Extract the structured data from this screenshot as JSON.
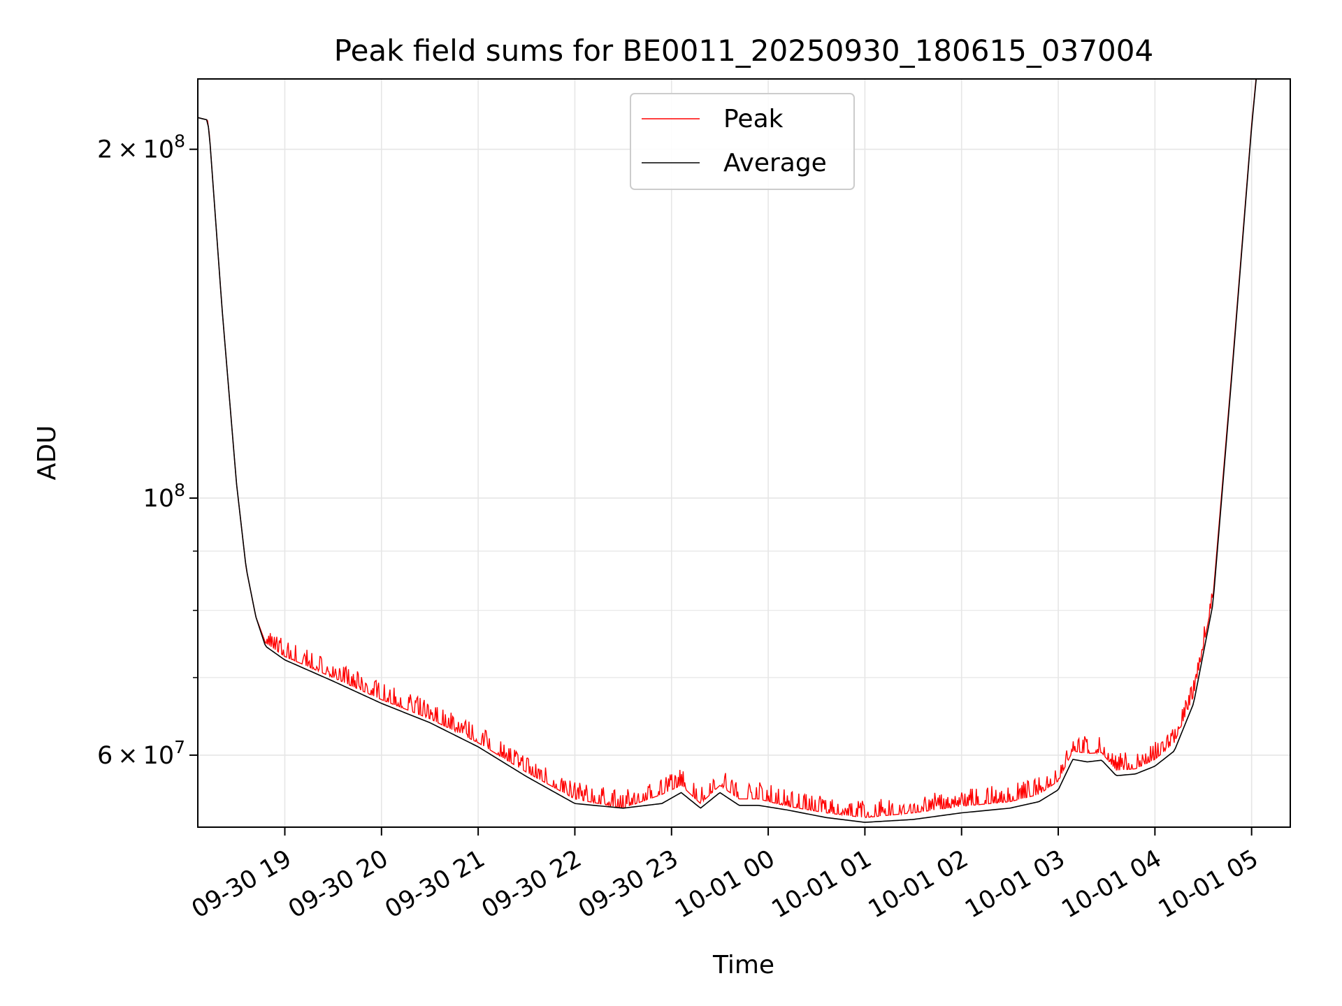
{
  "chart_data": {
    "type": "line",
    "title": "Peak field sums for BE0011_20250930_180615_037004",
    "xlabel": "Time",
    "ylabel": "ADU",
    "yscale": "log",
    "ylim": [
      52000000,
      230000000
    ],
    "xlim_hours": [
      18.1,
      29.4
    ],
    "grid": true,
    "legend_position": "upper center",
    "x_ticks": [
      {
        "hour": 19,
        "label": "09-30 19"
      },
      {
        "hour": 20,
        "label": "09-30 20"
      },
      {
        "hour": 21,
        "label": "09-30 21"
      },
      {
        "hour": 22,
        "label": "09-30 22"
      },
      {
        "hour": 23,
        "label": "09-30 23"
      },
      {
        "hour": 24,
        "label": "10-01 00"
      },
      {
        "hour": 25,
        "label": "10-01 01"
      },
      {
        "hour": 26,
        "label": "10-01 02"
      },
      {
        "hour": 27,
        "label": "10-01 03"
      },
      {
        "hour": 28,
        "label": "10-01 04"
      },
      {
        "hour": 29,
        "label": "10-01 05"
      }
    ],
    "y_major_ticks": [
      {
        "value": 200000000,
        "mantissa": "2",
        "base": "10",
        "exp": "8"
      },
      {
        "value": 100000000,
        "mantissa": "",
        "base": "10",
        "exp": "8"
      },
      {
        "value": 60000000,
        "mantissa": "6",
        "base": "10",
        "exp": "7"
      }
    ],
    "y_minor_ticks": [
      90000000,
      80000000,
      70000000
    ],
    "series": [
      {
        "name": "Peak",
        "color": "#ff0000",
        "hours": [
          18.1,
          18.2,
          18.22,
          18.35,
          18.5,
          18.6,
          18.7,
          18.8,
          19.0,
          19.5,
          20.0,
          20.5,
          21.0,
          21.5,
          22.0,
          22.5,
          22.9,
          23.1,
          23.3,
          23.5,
          23.7,
          23.9,
          24.2,
          24.6,
          25.0,
          25.5,
          26.0,
          26.5,
          26.8,
          27.0,
          27.15,
          27.3,
          27.45,
          27.6,
          27.8,
          28.0,
          28.2,
          28.4,
          28.6,
          28.8,
          29.0,
          29.05
        ],
        "values": [
          213000000,
          212000000,
          206000000,
          146000000,
          103000000,
          87000000,
          79000000,
          75000000,
          73000000,
          70000000,
          67000000,
          64500000,
          61500000,
          58000000,
          55000000,
          54000000,
          55500000,
          56500000,
          54500000,
          56500000,
          55000000,
          55000000,
          54200000,
          53500000,
          53000000,
          53500000,
          54200000,
          54700000,
          55500000,
          57000000,
          60500000,
          60200000,
          60300000,
          58200000,
          58400000,
          59500000,
          61500000,
          67500000,
          82000000,
          130000000,
          210000000,
          232000000
        ]
      },
      {
        "name": "Average",
        "color": "#000000",
        "hours": [
          18.1,
          18.2,
          18.22,
          18.35,
          18.5,
          18.6,
          18.7,
          18.8,
          19.0,
          19.5,
          20.0,
          20.5,
          21.0,
          21.5,
          22.0,
          22.5,
          22.9,
          23.1,
          23.3,
          23.5,
          23.7,
          23.9,
          24.2,
          24.6,
          25.0,
          25.5,
          26.0,
          26.5,
          26.8,
          27.0,
          27.15,
          27.3,
          27.45,
          27.6,
          27.8,
          28.0,
          28.2,
          28.4,
          28.6,
          28.8,
          29.0,
          29.05
        ],
        "values": [
          213000000,
          212000000,
          206000000,
          146000000,
          103000000,
          87000000,
          79000000,
          74500000,
          72500000,
          69500000,
          66500000,
          64000000,
          61000000,
          57500000,
          54500000,
          54000000,
          54500000,
          55700000,
          54000000,
          55700000,
          54300000,
          54300000,
          53800000,
          53000000,
          52500000,
          52800000,
          53500000,
          54000000,
          54700000,
          56000000,
          59500000,
          59200000,
          59400000,
          57600000,
          57800000,
          58700000,
          60500000,
          66500000,
          81000000,
          129000000,
          209000000,
          231000000
        ]
      }
    ]
  }
}
